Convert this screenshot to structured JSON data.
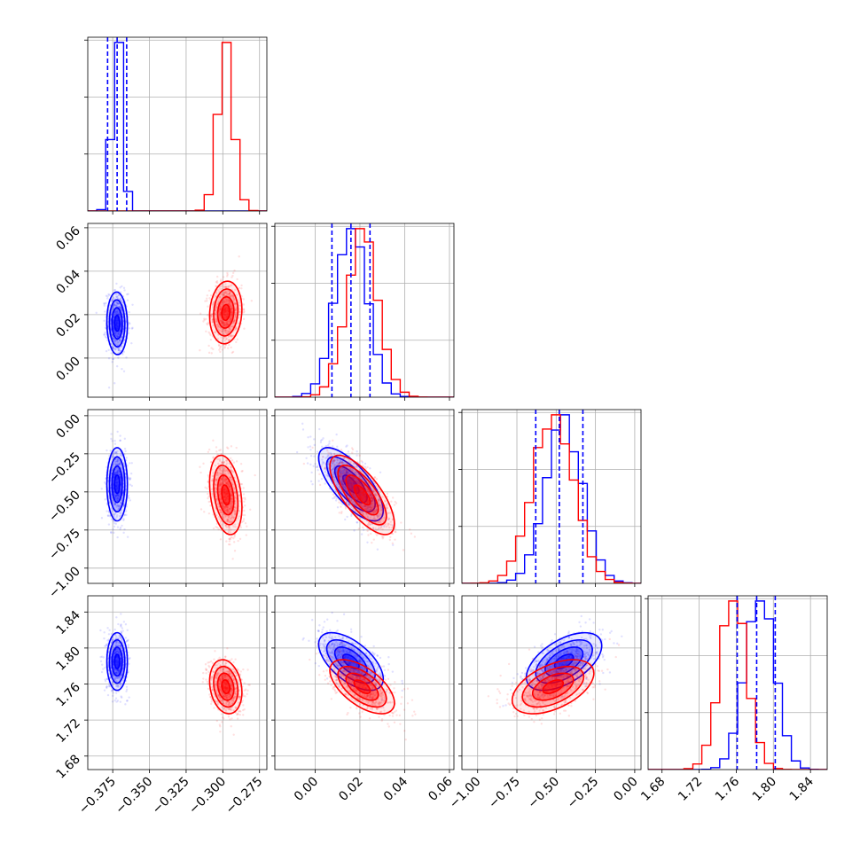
{
  "colors": {
    "series_a": "#0000ff",
    "series_b": "#ff0000",
    "grid": "#b0b0b0"
  },
  "chart_data": {
    "type": "corner",
    "grid": true,
    "parameters": [
      {
        "range": [
          -0.392,
          -0.27
        ],
        "ticks": [
          -0.375,
          -0.35,
          -0.325,
          -0.3,
          -0.275
        ],
        "tick_labels": [
          "−0.375",
          "−0.350",
          "−0.325",
          "−0.300",
          "−0.275"
        ]
      },
      {
        "range": [
          -0.018,
          0.062
        ],
        "ticks": [
          0.0,
          0.02,
          0.04,
          0.06
        ],
        "tick_labels": [
          "0.00",
          "0.02",
          "0.04",
          "0.06"
        ]
      },
      {
        "range": [
          -1.1,
          0.04
        ],
        "ticks": [
          -1.0,
          -0.75,
          -0.5,
          -0.25,
          0.0
        ],
        "tick_labels": [
          "−1.00",
          "−0.75",
          "−0.50",
          "−0.25",
          "0.00"
        ]
      },
      {
        "range": [
          1.665,
          1.858
        ],
        "ticks": [
          1.68,
          1.72,
          1.76,
          1.8,
          1.84
        ],
        "tick_labels": [
          "1.68",
          "1.72",
          "1.76",
          "1.80",
          "1.84"
        ]
      }
    ],
    "series": [
      {
        "color": "#0000ff",
        "means": [
          -0.372,
          0.016,
          -0.45,
          1.785
        ],
        "sigmas": [
          0.0035,
          0.0072,
          0.12,
          0.016
        ],
        "corr": [
          [
            1,
            -0.05,
            0,
            0
          ],
          [
            -0.05,
            1,
            -0.72,
            -0.6
          ],
          [
            0,
            -0.72,
            1,
            0.55
          ],
          [
            0,
            -0.6,
            0.55,
            1
          ]
        ],
        "quantile_lines": [
          [
            -0.3785,
            -0.372,
            -0.3655
          ],
          [
            0.0075,
            0.016,
            0.0245
          ],
          [
            -0.63,
            -0.48,
            -0.33
          ],
          [
            1.761,
            1.782,
            1.802
          ]
        ]
      },
      {
        "color": "#ff0000",
        "means": [
          -0.298,
          0.021,
          -0.52,
          1.757
        ],
        "sigmas": [
          0.0055,
          0.0072,
          0.13,
          0.015
        ],
        "corr": [
          [
            1,
            0.1,
            -0.3,
            -0.2
          ],
          [
            0.1,
            1,
            -0.72,
            -0.6
          ],
          [
            -0.3,
            -0.72,
            1,
            0.5
          ],
          [
            -0.2,
            -0.6,
            0.5,
            1
          ]
        ]
      }
    ]
  }
}
